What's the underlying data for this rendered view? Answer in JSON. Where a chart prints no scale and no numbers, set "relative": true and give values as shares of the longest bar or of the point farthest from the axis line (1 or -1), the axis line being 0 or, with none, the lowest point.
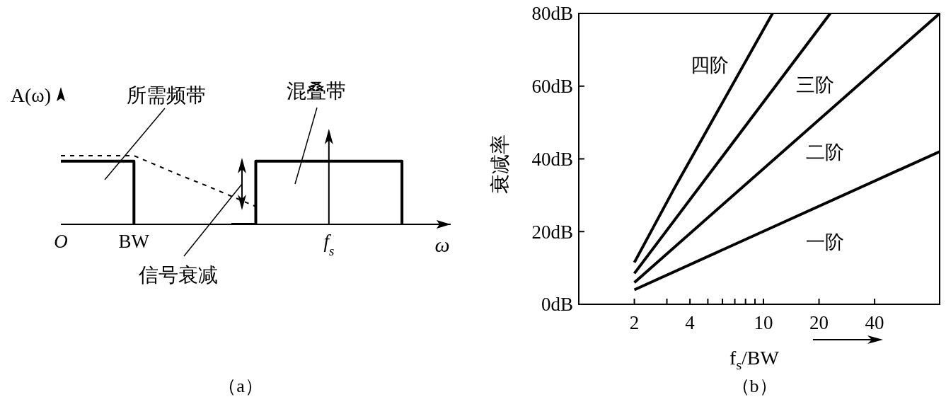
{
  "chart_data": [
    {
      "type": "line",
      "relative": true,
      "xlabel": "ω",
      "ylabel": "A(ω)",
      "categories": [
        "O",
        null,
        null,
        "BW",
        null,
        null,
        null,
        null,
        null,
        null,
        null,
        "f$_{s}$",
        null,
        null,
        null,
        null,
        null
      ],
      "series": [
        {
          "type": "step",
          "color": "#000000",
          "values": [
            0.92,
            0.92,
            0.92,
            0,
            null,
            null,
            null,
            null,
            null,
            null,
            null,
            null,
            null,
            null,
            null,
            null,
            null
          ]
        },
        {
          "type": "line",
          "color": "#000000",
          "line_style": "dashed",
          "values": [
            1,
            1,
            1,
            1,
            0.85,
            0.7,
            0.56,
            0.41,
            0.26,
            null,
            null,
            null,
            null,
            null,
            null,
            null,
            null
          ]
        },
        {
          "type": "step",
          "color": "#000000",
          "values": [
            null,
            null,
            null,
            null,
            null,
            null,
            null,
            0,
            0.92,
            0.92,
            0.92,
            0.92,
            0.92,
            0.92,
            0,
            null,
            null
          ]
        }
      ],
      "annotations": [
        "所需频带",
        "混叠带",
        "信号衰减",
        "（a）"
      ]
    },
    {
      "type": "line",
      "log": "x",
      "xlabel": "f$_{s}$/BW",
      "ylabel": "衰减率",
      "xlim": [
        1,
        90
      ],
      "xticks": [
        2,
        {
          "value": 3,
          "label": null
        },
        4,
        {
          "value": 5,
          "label": null
        },
        {
          "value": 6,
          "label": null
        },
        {
          "value": 7,
          "label": null
        },
        {
          "value": 8,
          "label": null
        },
        {
          "value": 9,
          "label": null
        },
        10,
        20,
        40
      ],
      "ylim": [
        0,
        80
      ],
      "yticks": [
        {
          "value": 0,
          "label": "0dB"
        },
        {
          "value": 20,
          "label": "20dB"
        },
        {
          "value": 40,
          "label": "40dB"
        },
        {
          "value": 60,
          "label": "60dB"
        },
        {
          "value": 80,
          "label": "80dB"
        }
      ],
      "series": [
        {
          "name": "一阶",
          "color": "#000000",
          "x": [
            2,
            90
          ],
          "values": [
            4,
            42
          ]
        },
        {
          "name": "二阶",
          "color": "#000000",
          "x": [
            2,
            90
          ],
          "values": [
            6,
            80
          ]
        },
        {
          "name": "三阶",
          "color": "#000000",
          "x": [
            2,
            23
          ],
          "values": [
            8.5,
            80
          ]
        },
        {
          "name": "四阶",
          "color": "#000000",
          "x": [
            2,
            3.3,
            11.2
          ],
          "values": [
            11.5,
            32,
            80
          ]
        }
      ],
      "annotations": [
        "（b）"
      ]
    }
  ]
}
